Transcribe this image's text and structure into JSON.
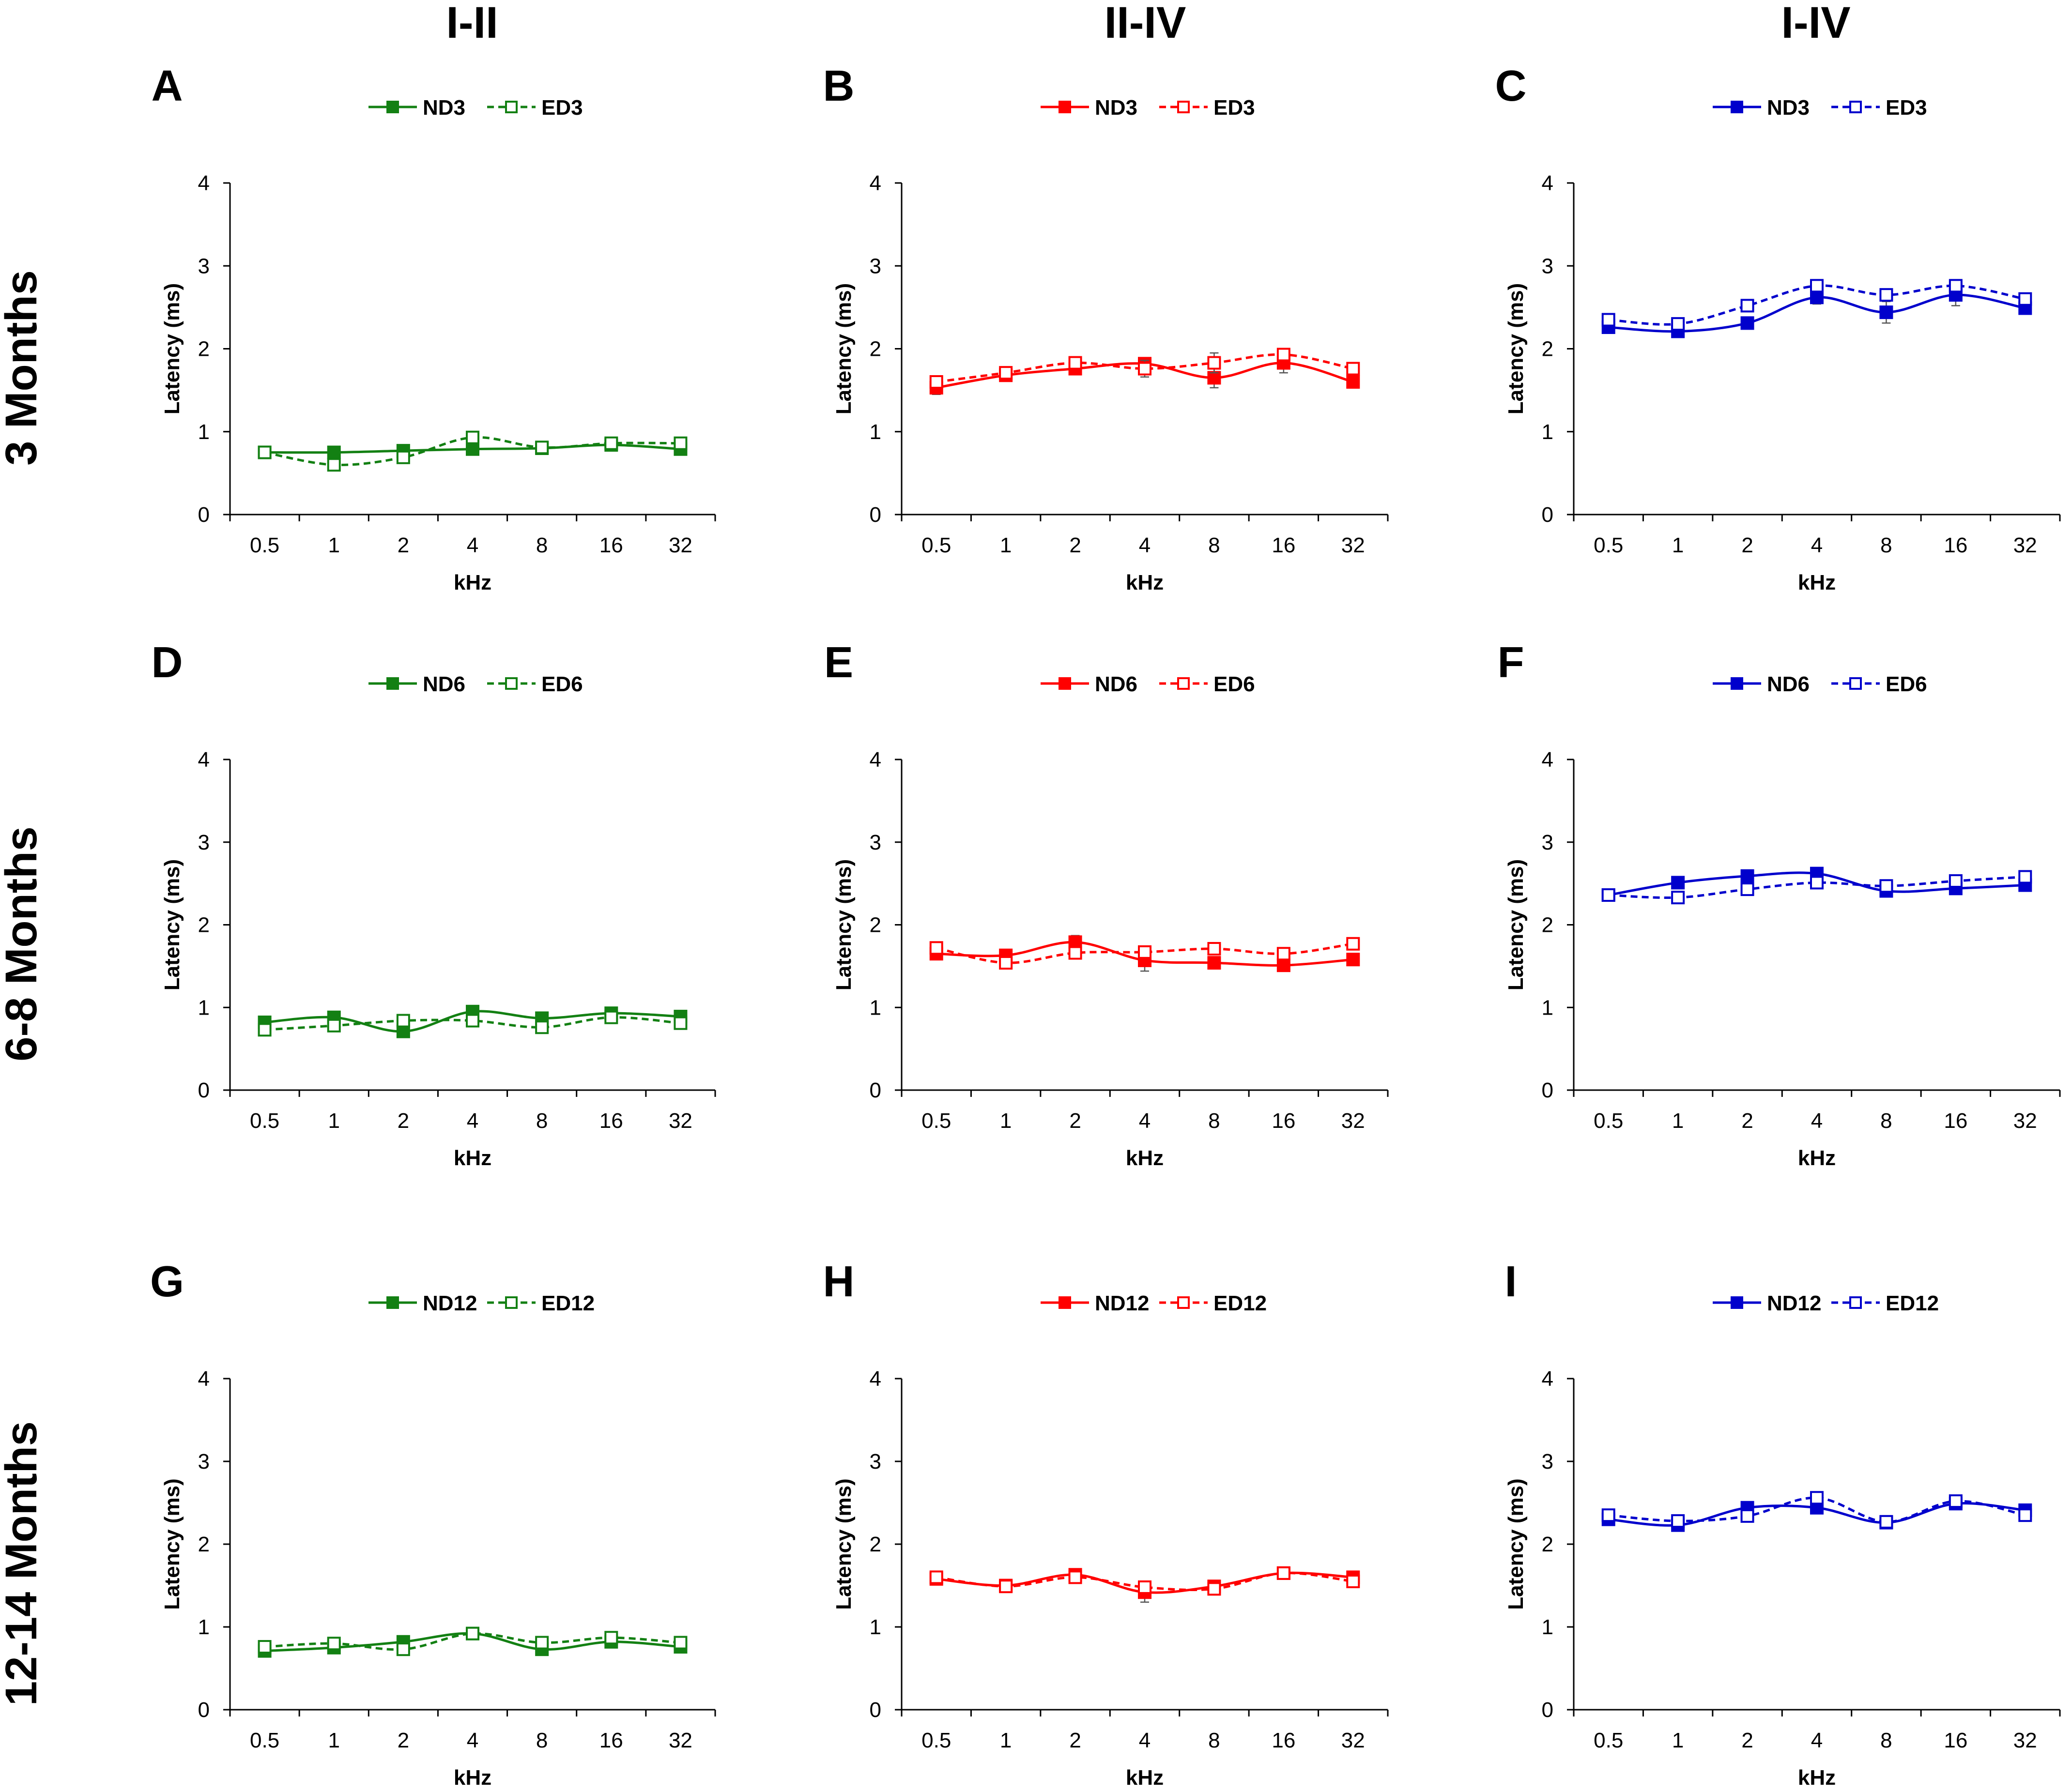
{
  "columns": [
    "I-II",
    "II-IV",
    "I-IV"
  ],
  "rows": [
    "3 Months",
    "6-8 Months",
    "12-14 Months"
  ],
  "colors": {
    "col0": "#138013",
    "col1": "#ff0000",
    "col2": "#0000cc"
  },
  "chart_data": [
    {
      "id": "A",
      "type": "line",
      "title": "",
      "xlabel": "kHz",
      "ylabel": "Latency (ms)",
      "categories": [
        "0.5",
        "1",
        "2",
        "4",
        "8",
        "16",
        "32"
      ],
      "ylim": [
        0,
        4
      ],
      "yticks": [
        "0",
        "1",
        "2",
        "3",
        "4"
      ],
      "color": "#138013",
      "series": [
        {
          "name": "ND3",
          "style": "solid",
          "values": [
            0.75,
            0.75,
            0.77,
            0.79,
            0.8,
            0.84,
            0.79
          ],
          "errors": [
            0.03,
            0.03,
            0.03,
            0.03,
            0.03,
            0.03,
            0.04
          ]
        },
        {
          "name": "ED3",
          "style": "dashed",
          "values": [
            0.75,
            0.6,
            0.69,
            0.93,
            0.81,
            0.86,
            0.86
          ],
          "errors": [
            0.03,
            0.04,
            0.03,
            0.05,
            0.03,
            0.03,
            0.03
          ]
        }
      ]
    },
    {
      "id": "B",
      "type": "line",
      "title": "",
      "xlabel": "kHz",
      "ylabel": "Latency (ms)",
      "categories": [
        "0.5",
        "1",
        "2",
        "4",
        "8",
        "16",
        "32"
      ],
      "ylim": [
        0,
        4
      ],
      "yticks": [
        "0",
        "1",
        "2",
        "3",
        "4"
      ],
      "color": "#ff0000",
      "series": [
        {
          "name": "ND3",
          "style": "solid",
          "values": [
            1.53,
            1.68,
            1.76,
            1.82,
            1.65,
            1.83,
            1.6
          ],
          "errors": [
            0.08,
            0.04,
            0.05,
            0.06,
            0.12,
            0.12,
            0.05
          ]
        },
        {
          "name": "ED3",
          "style": "dashed",
          "values": [
            1.6,
            1.71,
            1.83,
            1.76,
            1.83,
            1.93,
            1.76
          ],
          "errors": [
            0.05,
            0.04,
            0.05,
            0.1,
            0.12,
            0.06,
            0.06
          ]
        }
      ]
    },
    {
      "id": "C",
      "type": "line",
      "title": "",
      "xlabel": "kHz",
      "ylabel": "Latency (ms)",
      "categories": [
        "0.5",
        "1",
        "2",
        "4",
        "8",
        "16",
        "32"
      ],
      "ylim": [
        0,
        4
      ],
      "yticks": [
        "0",
        "1",
        "2",
        "3",
        "4"
      ],
      "color": "#0000cc",
      "series": [
        {
          "name": "ND3",
          "style": "solid",
          "values": [
            2.26,
            2.21,
            2.31,
            2.62,
            2.44,
            2.65,
            2.49
          ],
          "errors": [
            0.06,
            0.04,
            0.04,
            0.08,
            0.13,
            0.13,
            0.05
          ]
        },
        {
          "name": "ED3",
          "style": "dashed",
          "values": [
            2.35,
            2.3,
            2.52,
            2.76,
            2.65,
            2.76,
            2.6
          ],
          "errors": [
            0.05,
            0.04,
            0.05,
            0.06,
            0.06,
            0.05,
            0.05
          ]
        }
      ]
    },
    {
      "id": "D",
      "type": "line",
      "title": "",
      "xlabel": "kHz",
      "ylabel": "Latency (ms)",
      "categories": [
        "0.5",
        "1",
        "2",
        "4",
        "8",
        "16",
        "32"
      ],
      "ylim": [
        0,
        4
      ],
      "yticks": [
        "0",
        "1",
        "2",
        "3",
        "4"
      ],
      "color": "#138013",
      "series": [
        {
          "name": "ND6",
          "style": "solid",
          "values": [
            0.82,
            0.88,
            0.71,
            0.95,
            0.87,
            0.93,
            0.89
          ],
          "errors": [
            0.03,
            0.04,
            0.04,
            0.03,
            0.04,
            0.03,
            0.04
          ]
        },
        {
          "name": "ED6",
          "style": "dashed",
          "values": [
            0.73,
            0.78,
            0.84,
            0.84,
            0.76,
            0.88,
            0.81
          ],
          "errors": [
            0.03,
            0.04,
            0.03,
            0.04,
            0.04,
            0.04,
            0.03
          ]
        }
      ]
    },
    {
      "id": "E",
      "type": "line",
      "title": "",
      "xlabel": "kHz",
      "ylabel": "Latency (ms)",
      "categories": [
        "0.5",
        "1",
        "2",
        "4",
        "8",
        "16",
        "32"
      ],
      "ylim": [
        0,
        4
      ],
      "yticks": [
        "0",
        "1",
        "2",
        "3",
        "4"
      ],
      "color": "#ff0000",
      "series": [
        {
          "name": "ND6",
          "style": "solid",
          "values": [
            1.65,
            1.63,
            1.79,
            1.57,
            1.54,
            1.51,
            1.58
          ],
          "errors": [
            0.04,
            0.05,
            0.08,
            0.13,
            0.04,
            0.04,
            0.05
          ]
        },
        {
          "name": "ED6",
          "style": "dashed",
          "values": [
            1.72,
            1.54,
            1.66,
            1.67,
            1.71,
            1.65,
            1.77
          ],
          "errors": [
            0.04,
            0.04,
            0.06,
            0.05,
            0.04,
            0.04,
            0.04
          ]
        }
      ]
    },
    {
      "id": "F",
      "type": "line",
      "title": "",
      "xlabel": "kHz",
      "ylabel": "Latency (ms)",
      "categories": [
        "0.5",
        "1",
        "2",
        "4",
        "8",
        "16",
        "32"
      ],
      "ylim": [
        0,
        4
      ],
      "yticks": [
        "0",
        "1",
        "2",
        "3",
        "4"
      ],
      "color": "#0000cc",
      "series": [
        {
          "name": "ND6",
          "style": "solid",
          "values": [
            2.36,
            2.51,
            2.59,
            2.62,
            2.41,
            2.44,
            2.48
          ],
          "errors": [
            0.04,
            0.04,
            0.03,
            0.04,
            0.04,
            0.04,
            0.04
          ]
        },
        {
          "name": "ED6",
          "style": "dashed",
          "values": [
            2.36,
            2.33,
            2.43,
            2.51,
            2.47,
            2.53,
            2.58
          ],
          "errors": [
            0.03,
            0.03,
            0.03,
            0.04,
            0.04,
            0.03,
            0.03
          ]
        }
      ]
    },
    {
      "id": "G",
      "type": "line",
      "title": "",
      "xlabel": "kHz",
      "ylabel": "Latency (ms)",
      "categories": [
        "0.5",
        "1",
        "2",
        "4",
        "8",
        "16",
        "32"
      ],
      "ylim": [
        0,
        4
      ],
      "yticks": [
        "0",
        "1",
        "2",
        "3",
        "4"
      ],
      "color": "#138013",
      "series": [
        {
          "name": "ND12",
          "style": "solid",
          "values": [
            0.71,
            0.75,
            0.82,
            0.92,
            0.73,
            0.82,
            0.76
          ],
          "errors": [
            0.03,
            0.03,
            0.04,
            0.03,
            0.03,
            0.03,
            0.03
          ]
        },
        {
          "name": "ED12",
          "style": "dashed",
          "values": [
            0.76,
            0.8,
            0.73,
            0.92,
            0.81,
            0.87,
            0.81
          ],
          "errors": [
            0.03,
            0.03,
            0.03,
            0.03,
            0.03,
            0.03,
            0.03
          ]
        }
      ]
    },
    {
      "id": "H",
      "type": "line",
      "title": "",
      "xlabel": "kHz",
      "ylabel": "Latency (ms)",
      "categories": [
        "0.5",
        "1",
        "2",
        "4",
        "8",
        "16",
        "32"
      ],
      "ylim": [
        0,
        4
      ],
      "yticks": [
        "0",
        "1",
        "2",
        "3",
        "4"
      ],
      "color": "#ff0000",
      "series": [
        {
          "name": "ND12",
          "style": "solid",
          "values": [
            1.58,
            1.5,
            1.63,
            1.42,
            1.49,
            1.65,
            1.6
          ],
          "errors": [
            0.04,
            0.04,
            0.04,
            0.12,
            0.04,
            0.04,
            0.04
          ]
        },
        {
          "name": "ED12",
          "style": "dashed",
          "values": [
            1.6,
            1.49,
            1.6,
            1.48,
            1.46,
            1.65,
            1.55
          ],
          "errors": [
            0.04,
            0.03,
            0.04,
            0.05,
            0.04,
            0.03,
            0.04
          ]
        }
      ]
    },
    {
      "id": "I",
      "type": "line",
      "title": "",
      "xlabel": "kHz",
      "ylabel": "Latency (ms)",
      "categories": [
        "0.5",
        "1",
        "2",
        "4",
        "8",
        "16",
        "32"
      ],
      "ylim": [
        0,
        4
      ],
      "yticks": [
        "0",
        "1",
        "2",
        "3",
        "4"
      ],
      "color": "#0000cc",
      "series": [
        {
          "name": "ND12",
          "style": "solid",
          "values": [
            2.3,
            2.23,
            2.44,
            2.44,
            2.26,
            2.49,
            2.41
          ],
          "errors": [
            0.04,
            0.04,
            0.04,
            0.04,
            0.04,
            0.04,
            0.04
          ]
        },
        {
          "name": "ED12",
          "style": "dashed",
          "values": [
            2.35,
            2.28,
            2.34,
            2.56,
            2.27,
            2.52,
            2.35
          ],
          "errors": [
            0.04,
            0.04,
            0.04,
            0.04,
            0.04,
            0.04,
            0.04
          ]
        }
      ]
    }
  ]
}
